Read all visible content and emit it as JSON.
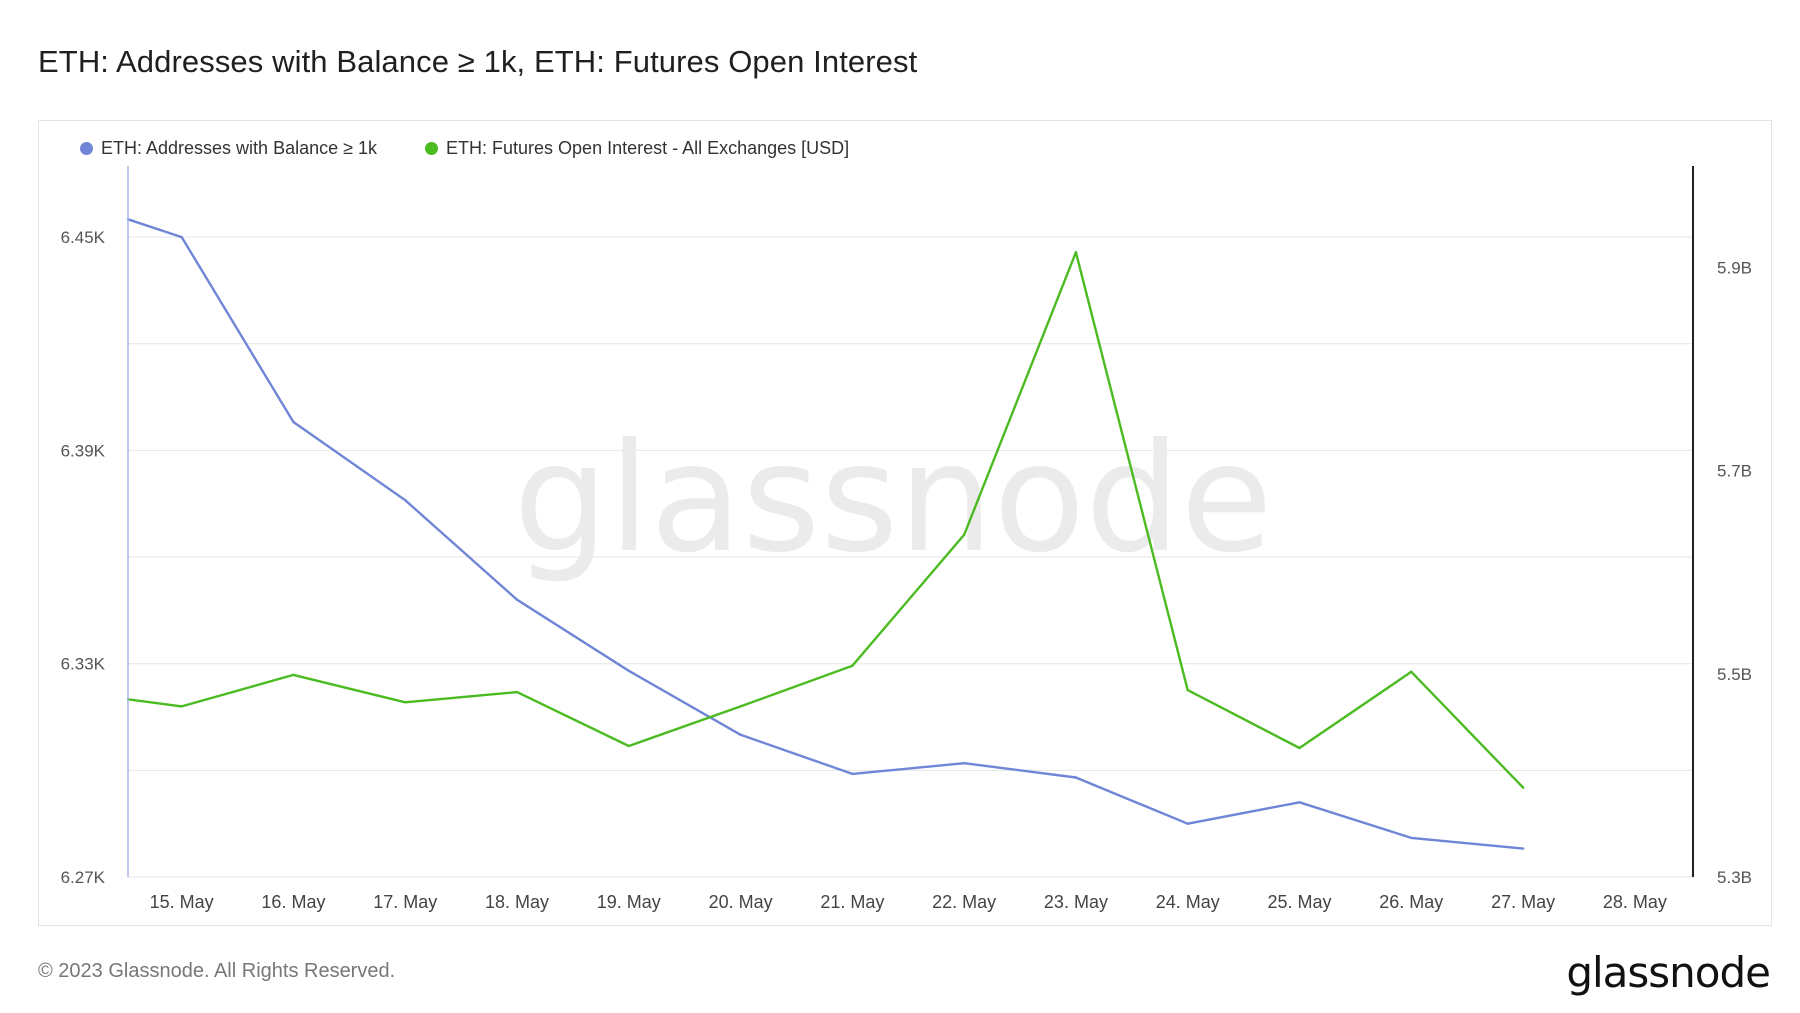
{
  "page": {
    "title": "ETH: Addresses with Balance ≥ 1k, ETH: Futures Open Interest",
    "copyright": "© 2023 Glassnode. All Rights Reserved.",
    "brand": "glassnode",
    "watermark": "glassnode"
  },
  "colors": {
    "addresses": "#6f86d6",
    "open_interest": "#4cbb22",
    "grid": "#e6e6e6",
    "axis_text": "#555555",
    "watermark": "#ebebeb"
  },
  "chart_data": {
    "type": "line",
    "x": [
      "15. May",
      "16. May",
      "17. May",
      "18. May",
      "19. May",
      "20. May",
      "21. May",
      "22. May",
      "23. May",
      "24. May",
      "25. May",
      "26. May",
      "27. May",
      "28. May"
    ],
    "x_tick_labels": [
      "15. May",
      "16. May",
      "17. May",
      "18. May",
      "19. May",
      "20. May",
      "21. May",
      "22. May",
      "23. May",
      "24. May",
      "25. May",
      "26. May",
      "27. May",
      "28. May"
    ],
    "series": [
      {
        "name": "ETH: Addresses with Balance ≥ 1k",
        "axis": "left",
        "color": "#6f86d6",
        "points": [
          {
            "day": 14.52,
            "value": 6455
          },
          {
            "day": 15.0,
            "value": 6450
          },
          {
            "day": 16.0,
            "value": 6398
          },
          {
            "day": 17.0,
            "value": 6376
          },
          {
            "day": 18.0,
            "value": 6348
          },
          {
            "day": 19.0,
            "value": 6328
          },
          {
            "day": 20.0,
            "value": 6310
          },
          {
            "day": 21.0,
            "value": 6299
          },
          {
            "day": 22.0,
            "value": 6302
          },
          {
            "day": 23.0,
            "value": 6298
          },
          {
            "day": 24.0,
            "value": 6285
          },
          {
            "day": 25.0,
            "value": 6291
          },
          {
            "day": 26.0,
            "value": 6281
          },
          {
            "day": 27.0,
            "value": 6278
          }
        ]
      },
      {
        "name": "ETH: Futures Open Interest - All Exchanges [USD]",
        "axis": "right",
        "color": "#4cbb22",
        "points": [
          {
            "day": 14.52,
            "value": 5.475
          },
          {
            "day": 15.0,
            "value": 5.468
          },
          {
            "day": 16.0,
            "value": 5.499
          },
          {
            "day": 17.0,
            "value": 5.472
          },
          {
            "day": 18.0,
            "value": 5.482
          },
          {
            "day": 19.0,
            "value": 5.429
          },
          {
            "day": 20.0,
            "value": 5.468
          },
          {
            "day": 21.0,
            "value": 5.508
          },
          {
            "day": 22.0,
            "value": 5.637
          },
          {
            "day": 23.0,
            "value": 5.915
          },
          {
            "day": 24.0,
            "value": 5.484
          },
          {
            "day": 25.0,
            "value": 5.427
          },
          {
            "day": 26.0,
            "value": 5.502
          },
          {
            "day": 27.0,
            "value": 5.388
          }
        ]
      }
    ],
    "y_left": {
      "min": 6270,
      "max": 6470,
      "ticks": [
        6270,
        6330,
        6390,
        6450
      ],
      "tick_labels": [
        "6.27K",
        "6.33K",
        "6.39K",
        "6.45K"
      ]
    },
    "y_right": {
      "min": 5.3,
      "max": 6.0,
      "ticks": [
        5.3,
        5.5,
        5.7,
        5.9
      ],
      "tick_labels": [
        "5.3B",
        "5.5B",
        "5.7B",
        "5.9B"
      ]
    },
    "x_range": [
      14.52,
      28.52
    ],
    "grid": true,
    "legend_position": "top-left"
  }
}
